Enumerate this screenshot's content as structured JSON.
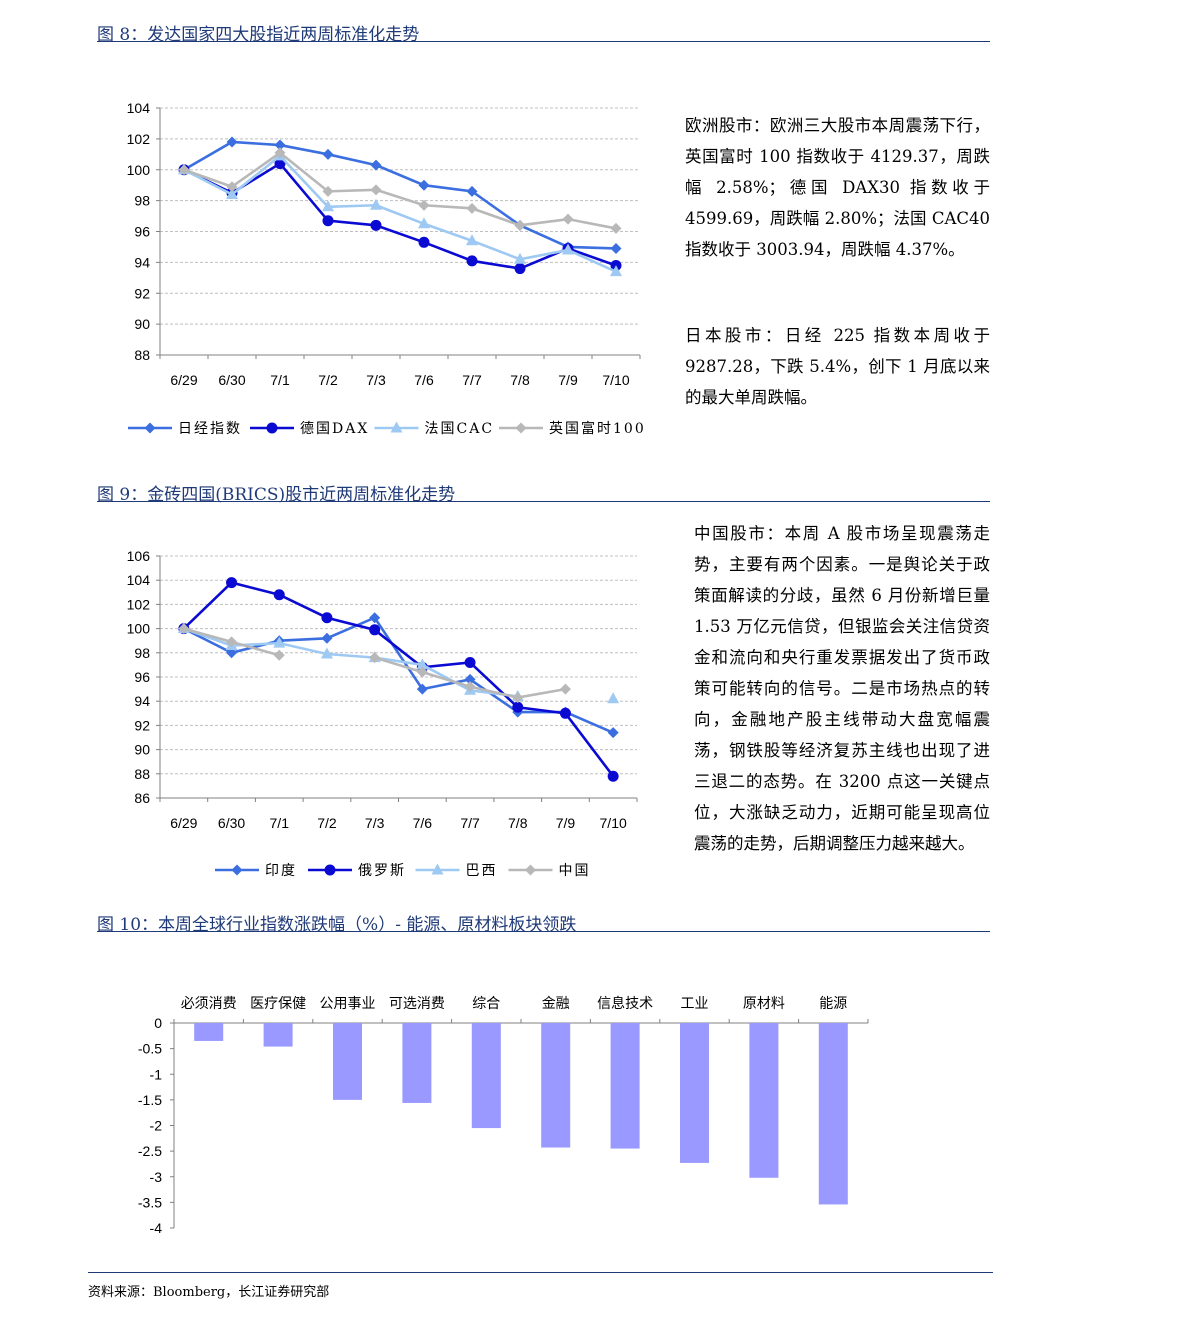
{
  "fig8": {
    "title": "图 8：发达国家四大股指近两周标准化走势",
    "text_europe": "欧洲股市：欧洲三大股市本周震荡下行，英国富时 100 指数收于 4129.37，周跌幅 2.58%；德国 DAX30 指数收于 4599.69，周跌幅 2.80%；法国 CAC40 指数收于 3003.94，周跌幅 4.37%。",
    "text_japan": "日本股市：日经 225 指数本周收于 9287.28，下跌 5.4%，创下 1 月底以来的最大单周跌幅。"
  },
  "fig9": {
    "title": "图 9：金砖四国(BRICS)股市近两周标准化走势",
    "text_china": "中国股市：本周 A 股市场呈现震荡走势，主要有两个因素。一是舆论关于政策面解读的分歧，虽然 6 月份新增巨量 1.53 万亿元信贷，但银监会关注信贷资金和流向和央行重发票据发出了货币政策可能转向的信号。二是市场热点的转向，金融地产股主线带动大盘宽幅震荡，钢铁股等经济复苏主线也出现了进三退二的态势。在 3200 点这一关键点位，大涨缺乏动力，近期可能呈现高位震荡的走势，后期调整压力越来越大。"
  },
  "fig10": {
    "title": "图 10：本周全球行业指数涨跌幅（%）- 能源、原材料板块领跌"
  },
  "source": "资料来源：Bloomberg，长江证券研究部",
  "colors": {
    "nikkei": "#3b6fe0",
    "dax": "#0a0ad2",
    "cac": "#9ec9f2",
    "ftse": "#b8b8b8",
    "india": "#3b6fe0",
    "russia": "#0a0ad2",
    "brazil": "#9ec9f2",
    "china": "#b8b8b8",
    "bar": "#9999ff"
  },
  "chart_data": [
    {
      "type": "line",
      "categories": [
        "6/29",
        "6/30",
        "7/1",
        "7/2",
        "7/3",
        "7/6",
        "7/7",
        "7/8",
        "7/9",
        "7/10"
      ],
      "ylim": [
        88,
        104
      ],
      "yticks": [
        88,
        90,
        92,
        94,
        96,
        98,
        100,
        102,
        104
      ],
      "series": [
        {
          "name": "日经指数",
          "marker": "diamond",
          "color": "#3b6fe0",
          "values": [
            100.0,
            101.8,
            101.6,
            101.0,
            100.3,
            99.0,
            98.6,
            96.4,
            95.0,
            94.9
          ]
        },
        {
          "name": "德国DAX",
          "marker": "circle",
          "color": "#0a0ad2",
          "values": [
            100.0,
            98.5,
            100.4,
            96.7,
            96.4,
            95.3,
            94.1,
            93.6,
            94.9,
            93.8
          ]
        },
        {
          "name": "法国CAC",
          "marker": "triangle",
          "color": "#9ec9f2",
          "values": [
            100.0,
            98.4,
            100.9,
            97.6,
            97.7,
            96.5,
            95.4,
            94.2,
            94.8,
            93.4
          ]
        },
        {
          "name": "英国富时100",
          "marker": "diamond",
          "color": "#b8b8b8",
          "values": [
            100.0,
            98.9,
            101.1,
            98.6,
            98.7,
            97.7,
            97.5,
            96.4,
            96.8,
            96.2
          ]
        }
      ]
    },
    {
      "type": "line",
      "categories": [
        "6/29",
        "6/30",
        "7/1",
        "7/2",
        "7/3",
        "7/6",
        "7/7",
        "7/8",
        "7/9",
        "7/10"
      ],
      "ylim": [
        86,
        106
      ],
      "yticks": [
        86,
        88,
        90,
        92,
        94,
        96,
        98,
        100,
        102,
        104,
        106
      ],
      "series": [
        {
          "name": "印度",
          "marker": "diamond",
          "color": "#3b6fe0",
          "values": [
            100.0,
            98.0,
            99.0,
            99.2,
            100.9,
            95.0,
            95.8,
            93.1,
            93.1,
            91.4
          ]
        },
        {
          "name": "俄罗斯",
          "marker": "circle",
          "color": "#0a0ad2",
          "values": [
            100.0,
            103.8,
            102.8,
            100.9,
            99.9,
            96.8,
            97.2,
            93.5,
            93.0,
            87.8
          ]
        },
        {
          "name": "巴西",
          "marker": "triangle",
          "color": "#9ec9f2",
          "values": [
            100.0,
            98.6,
            98.8,
            97.9,
            97.6,
            97.0,
            94.9,
            94.4,
            null,
            94.2
          ]
        },
        {
          "name": "中国",
          "marker": "diamond",
          "color": "#b8b8b8",
          "values": [
            100.0,
            98.9,
            97.8,
            null,
            97.6,
            96.4,
            95.2,
            94.3,
            95.0,
            null
          ]
        }
      ]
    },
    {
      "type": "bar",
      "categories": [
        "必须消费",
        "医疗保健",
        "公用事业",
        "可选消费",
        "综合",
        "金融",
        "信息技术",
        "工业",
        "原材料",
        "能源"
      ],
      "values": [
        -0.35,
        -0.46,
        -1.5,
        -1.56,
        -2.05,
        -2.43,
        -2.45,
        -2.73,
        -3.02,
        -3.54
      ],
      "ylim": [
        -4,
        0
      ],
      "yticks": [
        "0",
        "-0.5",
        "-1",
        "-1.5",
        "-2",
        "-2.5",
        "-3",
        "-3.5",
        "-4"
      ]
    }
  ]
}
